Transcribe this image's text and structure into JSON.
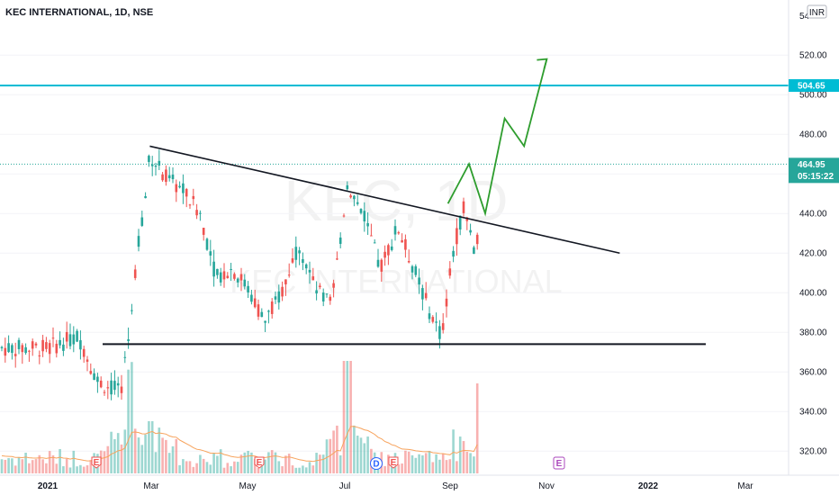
{
  "header": {
    "symbol": "KEC INTERNATIONAL, 1D, NSE",
    "currency": "INR",
    "scale_top_label": "54"
  },
  "watermark": {
    "ticker": "KEC, 1D",
    "name": "KEC INTERNATIONAL"
  },
  "price_axis": {
    "ticks": [
      "520.00",
      "500.00",
      "480.00",
      "460.00",
      "440.00",
      "420.00",
      "400.00",
      "380.00",
      "360.00",
      "340.00",
      "320.00"
    ]
  },
  "time_axis": {
    "labels": [
      "2021",
      "Mar",
      "May",
      "Jul",
      "Sep",
      "Nov",
      "2022",
      "Mar"
    ]
  },
  "tags": {
    "resistance_price": "504.65",
    "last_price": "464.95",
    "countdown": "05:15:22"
  },
  "event_markers": {
    "earnings": "E",
    "dividend": "D"
  },
  "colors": {
    "up": "#26a69a",
    "down": "#ef5350",
    "resistance_line": "#00bcd4",
    "last_price": "#26a69a",
    "projection": "#2e9d2e",
    "trendline": "#131722",
    "volume_ma": "#f7a35c"
  },
  "chart_data": {
    "type": "candlestick",
    "title": "KEC INTERNATIONAL, 1D, NSE",
    "yrange": [
      310,
      550
    ],
    "resistance_level": 504.65,
    "last_price": 464.95,
    "support_level": 374,
    "descending_trendline": [
      [
        "2021-03-05",
        474
      ],
      [
        "2021-12-20",
        420
      ]
    ],
    "projected_path": [
      [
        "2021-09-05",
        445
      ],
      [
        "2021-09-18",
        465
      ],
      [
        "2021-09-28",
        440
      ],
      [
        "2021-10-10",
        488
      ],
      [
        "2021-10-22",
        474
      ],
      [
        "2021-11-05",
        518
      ]
    ],
    "price_path": [
      [
        "2021-01-01",
        372
      ],
      [
        "2021-01-20",
        378
      ],
      [
        "2021-02-01",
        355
      ],
      [
        "2021-02-15",
        350
      ],
      [
        "2021-02-20",
        378
      ],
      [
        "2021-02-25",
        420
      ],
      [
        "2021-03-01",
        438
      ],
      [
        "2021-03-05",
        470
      ],
      [
        "2021-03-15",
        458
      ],
      [
        "2021-03-25",
        452
      ],
      [
        "2021-04-05",
        440
      ],
      [
        "2021-04-15",
        408
      ],
      [
        "2021-04-25",
        412
      ],
      [
        "2021-05-05",
        402
      ],
      [
        "2021-05-15",
        385
      ],
      [
        "2021-05-25",
        400
      ],
      [
        "2021-06-05",
        425
      ],
      [
        "2021-06-15",
        402
      ],
      [
        "2021-06-25",
        393
      ],
      [
        "2021-07-05",
        455
      ],
      [
        "2021-07-15",
        440
      ],
      [
        "2021-07-25",
        412
      ],
      [
        "2021-08-05",
        433
      ],
      [
        "2021-08-15",
        412
      ],
      [
        "2021-08-25",
        390
      ],
      [
        "2021-09-01",
        378
      ],
      [
        "2021-09-08",
        420
      ],
      [
        "2021-09-15",
        445
      ],
      [
        "2021-09-22",
        418
      ],
      [
        "2021-09-27",
        450
      ]
    ],
    "volume_spikes": [
      [
        "2021-02-20",
        95
      ],
      [
        "2021-03-05",
        58
      ],
      [
        "2021-07-05",
        125
      ],
      [
        "2021-09-25",
        100
      ]
    ]
  }
}
